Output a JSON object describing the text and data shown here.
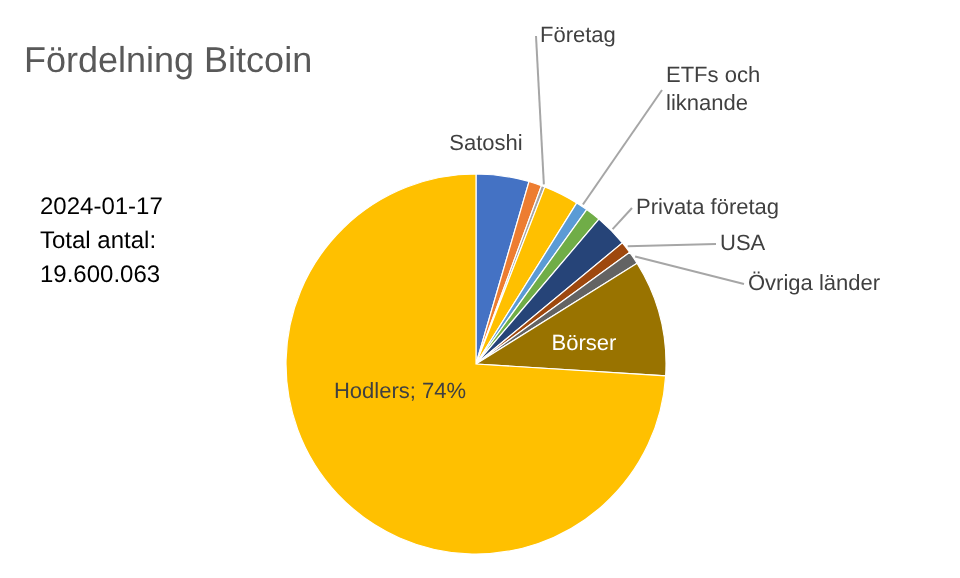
{
  "chart_data": {
    "type": "pie",
    "title": "Fördelning Bitcoin",
    "categories": [
      "Satoshi",
      null,
      "Företag",
      null,
      "ETFs och liknande",
      null,
      "Privata företag",
      "USA",
      "Övriga länder",
      "Börser",
      "Hodlers"
    ],
    "values": [
      4.5,
      1.1,
      0.3,
      3,
      1,
      1.3,
      2.8,
      1,
      1.1,
      9.9,
      74
    ],
    "colors": [
      "#4472c4",
      "#ed7d31",
      "#a5a5a5",
      "#ffc000",
      "#5b9bd5",
      "#70ad47",
      "#264478",
      "#9e480e",
      "#636363",
      "#997300",
      "#ffc000"
    ],
    "value_labels": [
      null,
      null,
      null,
      null,
      null,
      null,
      null,
      null,
      null,
      null,
      "74%"
    ],
    "annotations": [
      "2024-01-17",
      "Total antal:",
      "19.600.063"
    ]
  }
}
